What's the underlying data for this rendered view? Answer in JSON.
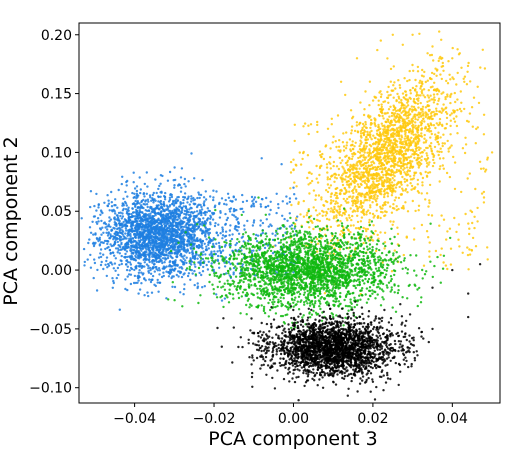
{
  "chart_data": {
    "type": "scatter",
    "title": "",
    "xlabel": "PCA component 3",
    "ylabel": "PCA component 2",
    "xlim": [
      -0.054,
      0.052
    ],
    "ylim": [
      -0.113,
      0.21
    ],
    "x_ticks": [
      {
        "value": -0.04,
        "label": "−0.04"
      },
      {
        "value": -0.02,
        "label": "−0.02"
      },
      {
        "value": 0.0,
        "label": "0.00"
      },
      {
        "value": 0.02,
        "label": "0.02"
      },
      {
        "value": 0.04,
        "label": "0.04"
      }
    ],
    "y_ticks": [
      {
        "value": -0.1,
        "label": "−0.10"
      },
      {
        "value": -0.05,
        "label": "−0.05"
      },
      {
        "value": 0.0,
        "label": "0.00"
      },
      {
        "value": 0.05,
        "label": "0.05"
      },
      {
        "value": 0.1,
        "label": "0.10"
      },
      {
        "value": 0.15,
        "label": "0.15"
      },
      {
        "value": 0.2,
        "label": "0.20"
      }
    ],
    "grid": false,
    "legend": "none",
    "series": [
      {
        "color": "#1f7fe0",
        "center": [
          -0.034,
          0.03
        ],
        "spread": [
          0.007,
          0.022
        ],
        "count": 2600,
        "values": [
          [
            -0.051,
            0.067
          ],
          [
            -0.05,
            0.006
          ],
          [
            -0.047,
            -0.005
          ],
          [
            -0.045,
            0.05
          ],
          [
            -0.042,
            0.072
          ],
          [
            -0.04,
            0.062
          ],
          [
            -0.039,
            -0.02
          ],
          [
            -0.036,
            0.0
          ],
          [
            -0.033,
            0.08
          ],
          [
            -0.032,
            -0.024
          ],
          [
            -0.03,
            0.07
          ],
          [
            -0.028,
            0.018
          ],
          [
            -0.025,
            0.078
          ],
          [
            -0.022,
            0.06
          ],
          [
            -0.02,
            0.048
          ],
          [
            -0.018,
            -0.026
          ],
          [
            -0.015,
            0.05
          ],
          [
            -0.012,
            -0.022
          ],
          [
            -0.01,
            0.06
          ],
          [
            -0.008,
            0.095
          ],
          [
            -0.005,
            0.0
          ],
          [
            -0.003,
            0.09
          ],
          [
            0.0,
            0.07
          ]
        ]
      },
      {
        "color": "#ffc90e",
        "center": [
          0.024,
          0.1
        ],
        "spread": [
          0.009,
          0.042
        ],
        "count": 2200,
        "values": [
          [
            -0.005,
            0.02
          ],
          [
            0.0,
            0.085
          ],
          [
            0.008,
            0.03
          ],
          [
            0.012,
            0.16
          ],
          [
            0.016,
            0.18
          ],
          [
            0.022,
            0.195
          ],
          [
            0.025,
            0.2
          ],
          [
            0.03,
            0.2
          ],
          [
            0.035,
            0.19
          ],
          [
            0.04,
            0.18
          ],
          [
            0.043,
            0.16
          ],
          [
            0.046,
            0.12
          ],
          [
            0.047,
            0.092
          ],
          [
            0.048,
            0.132
          ],
          [
            0.05,
            0.1
          ],
          [
            0.045,
            0.04
          ]
        ]
      },
      {
        "color": "#0fb90f",
        "center": [
          0.004,
          0.0
        ],
        "spread": [
          0.011,
          0.016
        ],
        "count": 2400,
        "values": [
          [
            -0.022,
            0.01
          ],
          [
            -0.02,
            -0.02
          ],
          [
            -0.012,
            0.032
          ],
          [
            -0.008,
            -0.03
          ],
          [
            0.0,
            0.04
          ],
          [
            0.004,
            0.045
          ],
          [
            0.01,
            -0.04
          ],
          [
            0.018,
            0.025
          ],
          [
            0.022,
            0.01
          ],
          [
            0.028,
            0.01
          ]
        ]
      },
      {
        "color": "#000000",
        "center": [
          0.01,
          -0.066
        ],
        "spread": [
          0.008,
          0.012
        ],
        "count": 2400,
        "values": [
          [
            -0.008,
            -0.045
          ],
          [
            0.0,
            -0.088
          ],
          [
            0.01,
            -0.095
          ],
          [
            0.02,
            -0.095
          ],
          [
            0.028,
            -0.08
          ],
          [
            0.035,
            -0.015
          ],
          [
            0.04,
            0.0
          ],
          [
            0.044,
            -0.02
          ],
          [
            0.047,
            0.005
          ],
          [
            0.044,
            -0.04
          ],
          [
            0.035,
            -0.05
          ]
        ]
      }
    ]
  }
}
